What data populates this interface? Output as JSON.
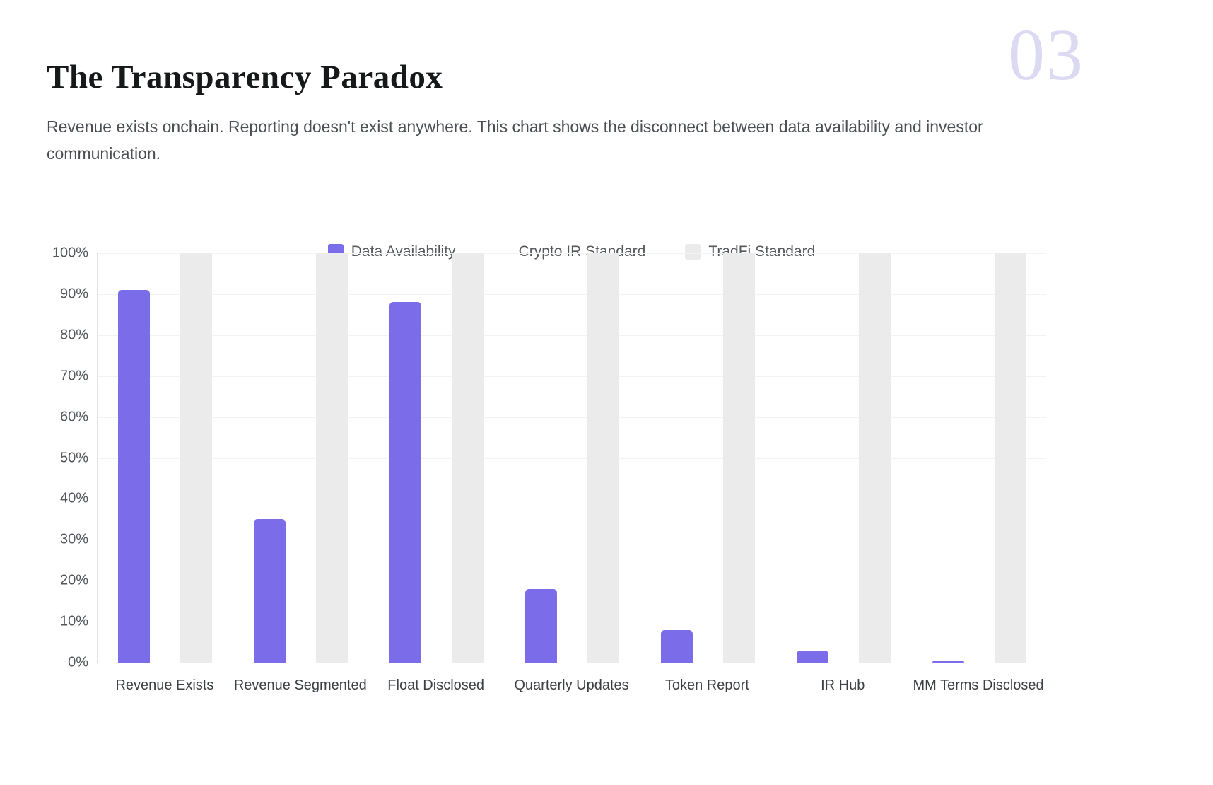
{
  "page": {
    "number": "03"
  },
  "header": {
    "title": "The Transparency Paradox",
    "subtitle": "Revenue exists onchain. Reporting doesn't exist anywhere. This chart shows the disconnect between data availability and investor communication."
  },
  "chart_data": {
    "type": "bar",
    "title": "",
    "xlabel": "",
    "ylabel": "",
    "ylim": [
      0,
      100
    ],
    "grid": true,
    "legend_position": "top-center",
    "y_ticks": [
      "0%",
      "10%",
      "20%",
      "30%",
      "40%",
      "50%",
      "60%",
      "70%",
      "80%",
      "90%",
      "100%"
    ],
    "categories": [
      "Revenue Exists",
      "Revenue Segmented",
      "Float Disclosed",
      "Quarterly Updates",
      "Token Report",
      "IR Hub",
      "MM Terms Disclosed"
    ],
    "series": [
      {
        "name": "Data Availability",
        "color": "#7b6cea",
        "values": [
          91,
          35,
          88,
          18,
          8,
          3,
          0.5
        ]
      },
      {
        "name": "Crypto IR Standard",
        "color": "#ffffff",
        "values": [
          0,
          0,
          0,
          0,
          0,
          0,
          0
        ]
      },
      {
        "name": "TradFi Standard",
        "color": "#ebebeb",
        "values": [
          100,
          100,
          100,
          100,
          100,
          100,
          100
        ]
      }
    ]
  },
  "colors": {
    "accent_purple": "#7b6cea",
    "tradfi_gray": "#ebebeb",
    "page_number": "#dcdaf3",
    "gridline": "#f3f3f3",
    "axis_line": "#e3e3e3"
  }
}
